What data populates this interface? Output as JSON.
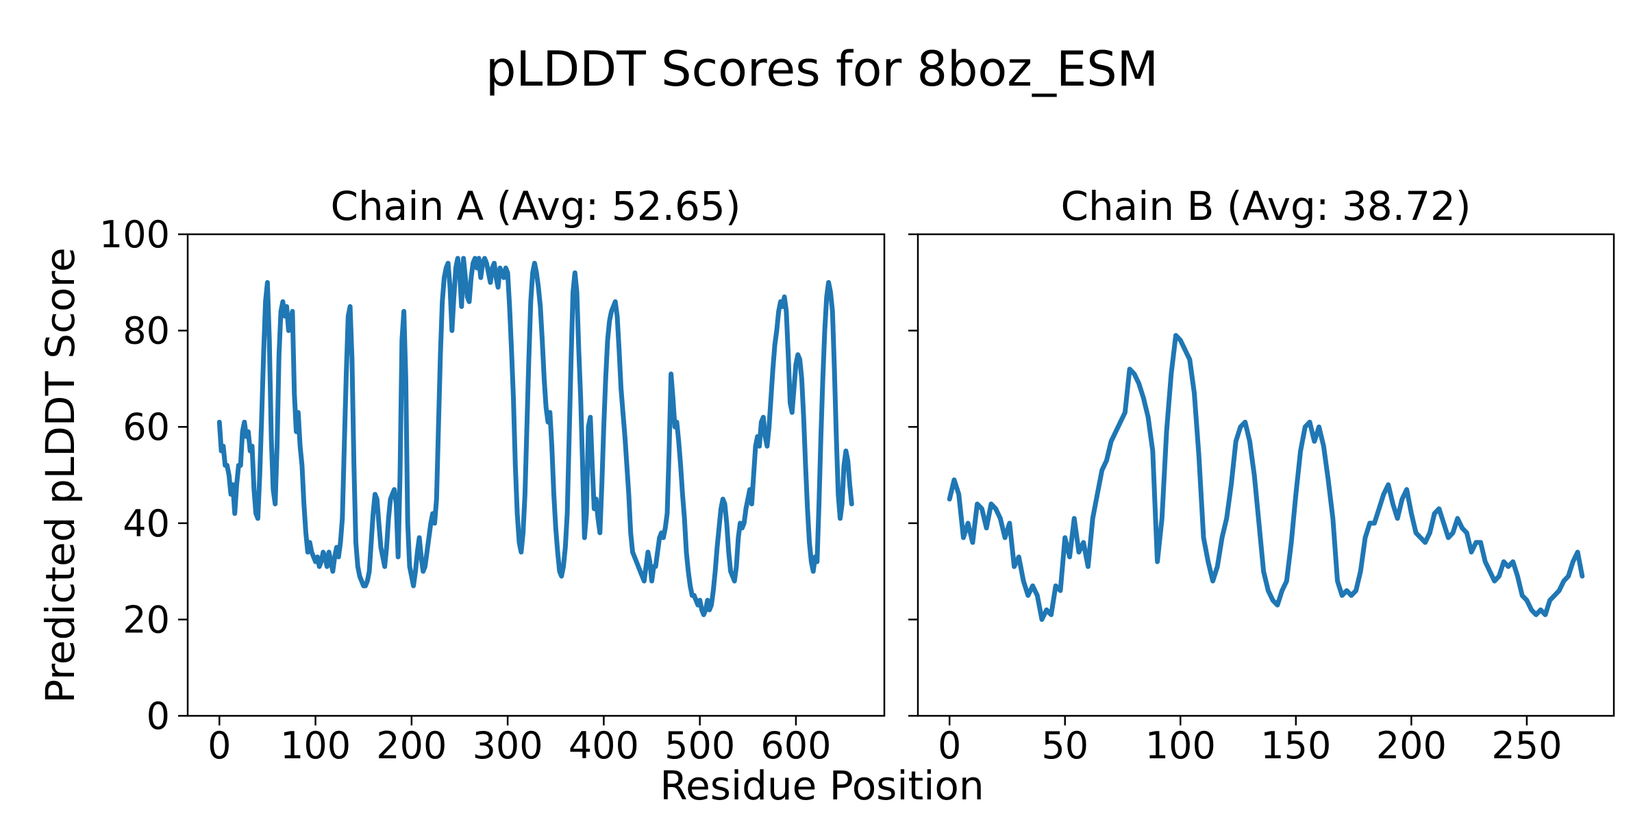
{
  "figure": {
    "title": "pLDDT Scores for 8boz_ESM",
    "xlabel": "Residue Position",
    "ylabel": "Predicted pLDDT Score",
    "background_color": "#ffffff",
    "text_color": "#000000",
    "line_color": "#1f77b4"
  },
  "chart_data": [
    {
      "type": "line",
      "title": "Chain A (Avg: 52.65)",
      "series_name": "Chain A pLDDT",
      "avg": 52.65,
      "xlabel": "Residue Position",
      "ylabel": "Predicted pLDDT Score",
      "x_start": 0,
      "x_step": 2,
      "xlim": [
        -33,
        692
      ],
      "ylim": [
        0,
        100
      ],
      "xticks": [
        0,
        100,
        200,
        300,
        400,
        500,
        600
      ],
      "yticks": [
        0,
        20,
        40,
        60,
        80,
        100
      ],
      "show_ytick_labels": true,
      "grid": false,
      "legend": "none",
      "values": [
        61,
        55,
        56,
        52,
        52,
        50,
        46,
        48,
        42,
        48,
        52,
        52,
        59,
        61,
        58,
        59,
        55,
        56,
        47,
        42,
        41,
        50,
        62,
        75,
        86,
        90,
        78,
        58,
        47,
        44,
        56,
        75,
        84,
        86,
        83,
        85,
        80,
        82,
        84,
        67,
        59,
        63,
        56,
        52,
        44,
        38,
        34,
        36,
        34,
        33,
        32,
        33,
        31,
        32,
        34,
        33,
        31,
        34,
        32,
        30,
        33,
        35,
        33,
        36,
        41,
        56,
        71,
        83,
        85,
        74,
        52,
        36,
        31,
        29,
        28,
        27,
        27,
        28,
        30,
        36,
        42,
        46,
        45,
        40,
        35,
        33,
        31,
        35,
        41,
        45,
        46,
        47,
        44,
        33,
        50,
        78,
        84,
        70,
        40,
        31,
        29,
        27,
        30,
        34,
        37,
        33,
        30,
        31,
        34,
        37,
        40,
        42,
        40,
        45,
        60,
        75,
        86,
        91,
        93,
        94,
        89,
        80,
        87,
        93,
        95,
        92,
        85,
        95,
        91,
        87,
        86,
        91,
        94,
        95,
        93,
        95,
        91,
        94,
        95,
        94,
        92,
        90,
        93,
        94,
        91,
        89,
        93,
        92,
        91,
        93,
        92,
        85,
        76,
        66,
        52,
        42,
        36,
        34,
        38,
        46,
        60,
        74,
        86,
        92,
        94,
        92,
        89,
        85,
        78,
        70,
        64,
        61,
        63,
        56,
        46,
        39,
        34,
        30,
        29,
        31,
        35,
        42,
        58,
        74,
        88,
        92,
        88,
        76,
        66,
        52,
        37,
        42,
        60,
        62,
        52,
        43,
        45,
        41,
        38,
        48,
        60,
        70,
        78,
        82,
        84,
        85,
        86,
        83,
        76,
        68,
        63,
        58,
        52,
        46,
        38,
        34,
        33,
        32,
        31,
        30,
        29,
        28,
        31,
        34,
        32,
        28,
        31,
        31,
        34,
        37,
        38,
        37,
        39,
        42,
        55,
        71,
        66,
        60,
        61,
        57,
        52,
        46,
        41,
        34,
        30,
        27,
        25,
        25,
        24,
        23,
        24,
        22,
        21,
        22,
        24,
        22,
        23,
        26,
        30,
        35,
        39,
        43,
        45,
        44,
        40,
        34,
        30,
        29,
        28,
        31,
        37,
        40,
        39,
        40,
        43,
        45,
        47,
        44,
        50,
        56,
        58,
        56,
        61,
        62,
        58,
        56,
        60,
        66,
        72,
        77,
        80,
        84,
        86,
        85,
        87,
        84,
        75,
        65,
        63,
        68,
        73,
        75,
        74,
        70,
        62,
        52,
        43,
        36,
        32,
        30,
        33,
        32,
        44,
        58,
        70,
        80,
        87,
        90,
        88,
        84,
        72,
        58,
        46,
        41,
        44,
        52,
        55,
        53,
        48,
        44
      ]
    },
    {
      "type": "line",
      "title": "Chain B (Avg: 38.72)",
      "series_name": "Chain B pLDDT",
      "avg": 38.72,
      "xlabel": "Residue Position",
      "ylabel": "Predicted pLDDT Score",
      "x_start": 0,
      "x_step": 2,
      "xlim": [
        -13.7,
        287.7
      ],
      "ylim": [
        0,
        100
      ],
      "xticks": [
        0,
        50,
        100,
        150,
        200,
        250
      ],
      "yticks": [
        0,
        20,
        40,
        60,
        80,
        100
      ],
      "show_ytick_labels": false,
      "grid": false,
      "legend": "none",
      "values": [
        45,
        49,
        46,
        37,
        40,
        36,
        44,
        43,
        39,
        44,
        43,
        41,
        37,
        40,
        31,
        33,
        28,
        25,
        27,
        25,
        20,
        22,
        21,
        27,
        26,
        37,
        33,
        41,
        34,
        36,
        31,
        41,
        46,
        51,
        53,
        57,
        59,
        61,
        63,
        72,
        71,
        69,
        66,
        62,
        55,
        32,
        41,
        59,
        71,
        79,
        78,
        76,
        74,
        67,
        54,
        37,
        32,
        28,
        31,
        37,
        41,
        48,
        57,
        60,
        61,
        57,
        50,
        40,
        30,
        26,
        24,
        23,
        26,
        28,
        36,
        46,
        55,
        60,
        61,
        57,
        60,
        56,
        49,
        41,
        28,
        25,
        26,
        25,
        26,
        30,
        37,
        40,
        40,
        43,
        46,
        48,
        44,
        41,
        45,
        47,
        42,
        38,
        37,
        36,
        38,
        42,
        43,
        40,
        37,
        38,
        41,
        39,
        38,
        34,
        36,
        36,
        32,
        30,
        28,
        29,
        32,
        31,
        32,
        29,
        25,
        24,
        22,
        21,
        22,
        21,
        24,
        25,
        26,
        28,
        29,
        32,
        34,
        29
      ]
    }
  ]
}
